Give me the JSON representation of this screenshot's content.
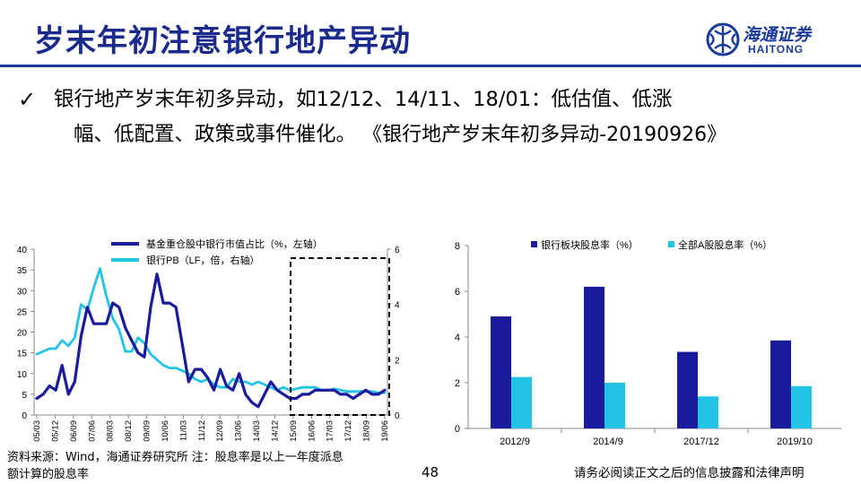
{
  "header": {
    "title": "岁末年初注意银行地产异动"
  },
  "logo": {
    "cn": "海通证券",
    "en": "HAITONG"
  },
  "bullet": {
    "line1": "银行地产岁末年初多异动，如12/12、14/11、18/01：低估值、低涨",
    "line2": "幅、低配置、政策或事件催化。",
    "citation": "《银行地产岁末年初多异动-20190926》"
  },
  "colors": {
    "title": "#1a2a8c",
    "dark_series": "#1a1a9c",
    "light_series": "#22c4e6"
  },
  "left_chart_data": {
    "type": "line",
    "legend": [
      "基金重仓股中银行市值占比（%，左轴）",
      "银行PB（LF，倍，右轴）"
    ],
    "y_left_ticks": [
      "0",
      "5",
      "10",
      "15",
      "20",
      "25",
      "30",
      "35",
      "40"
    ],
    "y_right_ticks": [
      "0",
      "2",
      "4",
      "6"
    ],
    "ylim_left": [
      0,
      40
    ],
    "ylim_right": [
      0,
      6
    ],
    "x_ticks": [
      "05/03",
      "05/12",
      "06/09",
      "07/06",
      "08/03",
      "08/12",
      "09/09",
      "10/06",
      "11/03",
      "11/12",
      "12/09",
      "13/06",
      "14/03",
      "14/12",
      "15/09",
      "16/06",
      "17/03",
      "17/12",
      "18/09",
      "19/06"
    ],
    "series_weight": [
      4,
      5,
      7,
      6,
      12,
      5,
      8,
      19,
      26,
      22,
      22,
      22,
      27,
      26,
      21,
      18,
      15,
      14,
      26,
      34,
      27,
      27,
      26,
      17,
      8,
      11,
      11,
      9,
      6,
      11,
      7,
      6,
      10,
      5,
      3,
      2,
      5,
      8,
      6,
      5,
      4,
      4,
      5,
      5,
      6,
      6,
      6,
      6,
      5,
      5,
      4,
      5,
      6,
      5,
      5,
      6
    ],
    "series_pb": [
      2.2,
      2.3,
      2.4,
      2.4,
      2.7,
      2.5,
      2.8,
      4.0,
      3.8,
      4.6,
      5.3,
      4.3,
      3.5,
      3.1,
      2.3,
      2.3,
      2.8,
      2.6,
      2.2,
      2.0,
      1.8,
      1.7,
      1.7,
      1.6,
      1.5,
      1.3,
      1.2,
      1.3,
      1.1,
      1.0,
      1.0,
      1.3,
      1.2,
      1.2,
      1.1,
      1.2,
      1.1,
      1.0,
      0.9,
      1.0,
      0.9,
      0.95,
      1.0,
      1.0,
      1.0,
      0.9,
      0.9,
      0.95,
      0.9,
      0.85,
      0.85,
      0.85,
      0.85,
      0.85,
      0.8,
      0.8
    ]
  },
  "right_chart_data": {
    "type": "bar",
    "categories": [
      "2012/9",
      "2014/9",
      "2017/12",
      "2019/10"
    ],
    "series": [
      {
        "name": "银行板块股息率（%）",
        "values": [
          4.9,
          6.2,
          3.35,
          3.85
        ]
      },
      {
        "name": "全部A股股息率（%）",
        "values": [
          2.25,
          2.0,
          1.4,
          1.85
        ]
      }
    ],
    "y_ticks": [
      "0",
      "2",
      "4",
      "6",
      "8"
    ],
    "ylim": [
      0,
      8
    ]
  },
  "footer": {
    "source_line1": "资料来源：Wind，海通证券研究所  注：股息率是以上一年度派息",
    "source_line2": "额计算的股息率",
    "page": "48",
    "disclaimer": "请务必阅读正文之后的信息披露和法律声明"
  }
}
